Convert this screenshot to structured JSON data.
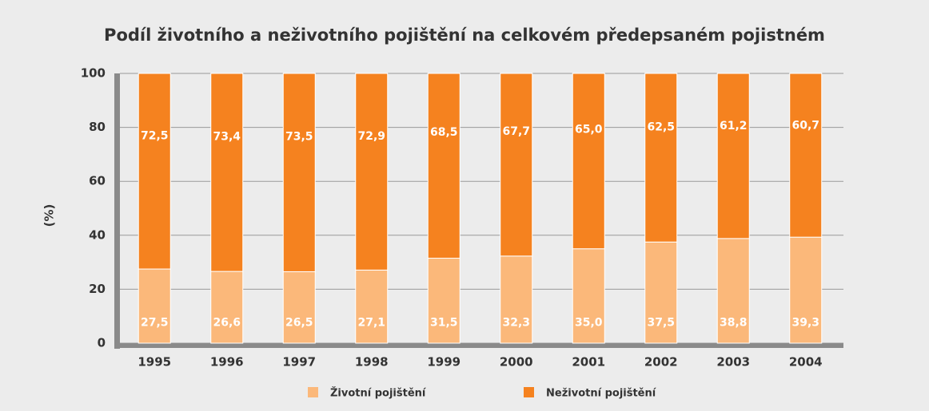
{
  "chart_data": {
    "type": "stacked_bar",
    "title": "Podíl životního a neživotního pojištění na celkovém předepsaném pojistném",
    "ylabel": "(%)",
    "categories": [
      "1995",
      "1996",
      "1997",
      "1998",
      "1999",
      "2000",
      "2001",
      "2002",
      "2003",
      "2004"
    ],
    "series": [
      {
        "name": "Životní pojištění",
        "color": "#fbb87a",
        "values": [
          27.5,
          26.6,
          26.5,
          27.1,
          31.5,
          32.3,
          35.0,
          37.5,
          38.8,
          39.3
        ],
        "value_labels": [
          "27,5",
          "26,6",
          "26,5",
          "27,1",
          "31,5",
          "32,3",
          "35,0",
          "37,5",
          "38,8",
          "39,3"
        ]
      },
      {
        "name": "Neživotní pojištění",
        "color": "#f5821f",
        "values": [
          72.5,
          73.4,
          73.5,
          72.9,
          68.5,
          67.7,
          65.0,
          62.5,
          61.2,
          60.7
        ],
        "value_labels": [
          "72,5",
          "73,4",
          "73,5",
          "72,9",
          "68,5",
          "67,7",
          "65,0",
          "62,5",
          "61,2",
          "60,7"
        ]
      }
    ],
    "ylim": [
      0,
      100
    ],
    "yticks": [
      0,
      20,
      40,
      60,
      80,
      100
    ],
    "grid": true
  }
}
